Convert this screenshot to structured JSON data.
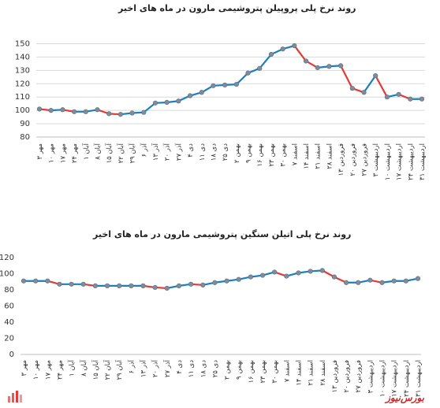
{
  "watermark": "بورس‌نیوز",
  "colors": {
    "line": "#1a7fc1",
    "down": "#e53935",
    "marker": "#7f8c9a",
    "grid": "#d9d9d9",
    "axis": "#bfbfbf"
  },
  "chart_data": [
    {
      "type": "line",
      "title": "روند نرخ پلی پروپیلن پتروشیمی مارون در ماه های اخیر",
      "ylim": [
        80,
        155
      ],
      "yticks": [
        80,
        90,
        100,
        110,
        120,
        130,
        140,
        150
      ],
      "grid": true,
      "categories": [
        "۳ مهر",
        "۱۰ مهر",
        "۱۷ مهر",
        "۲۴ مهر",
        "۱ آبان",
        "۸ آبان",
        "۱۵ آبان",
        "۲۲ آبان",
        "۲۹ آبان",
        "۶ آذر",
        "۱۳ آذر",
        "۲۰ آذر",
        "۲۷ آذر",
        "۴ دی",
        "۱۱ دی",
        "۱۸ دی",
        "۲۵ دی",
        "۲ بهمن",
        "۹ بهمن",
        "۱۶ بهمن",
        "۲۳ بهمن",
        "۳۰ بهمن",
        "۷ اسفند",
        "۱۴ اسفند",
        "۲۱ اسفند",
        "۲۸ اسفند",
        "۱۳ فروردین",
        "۲۰ فروردین",
        "۲۷ فروردین",
        "۳ اردیبهشت",
        "۱۰ اردیبهشت",
        "۱۷ اردیبهشت",
        "۲۴ اردیبهشت",
        "۳۱ اردیبهشت"
      ],
      "values": [
        101,
        100,
        100.5,
        99,
        99,
        100.5,
        97.5,
        97,
        98,
        98.5,
        105.5,
        106,
        107,
        111,
        113.5,
        118.5,
        119,
        119.5,
        128,
        131.5,
        142,
        146,
        148.5,
        137,
        132,
        133,
        133.5,
        116.5,
        113.5,
        126,
        110,
        112,
        108.5,
        108.5
      ]
    },
    {
      "type": "line",
      "title": "روند نرخ پلی اتیلن سنگین پتروشیمی مارون در ماه های اخیر",
      "ylim": [
        0,
        120
      ],
      "yticks": [
        0,
        20,
        40,
        60,
        80,
        100,
        120
      ],
      "grid": false,
      "categories": [
        "۳ مهر",
        "۱۰ مهر",
        "۱۷ مهر",
        "۲۴ مهر",
        "۱ آبان",
        "۸ آبان",
        "۱۵ آبان",
        "۲۲ آبان",
        "۲۹ آبان",
        "۶ آذر",
        "۱۳ آذر",
        "۲۰ آذر",
        "۲۷ آذر",
        "۴ دی",
        "۱۱ دی",
        "۱۸ دی",
        "۲۵ دی",
        "۲ بهمن",
        "۹ بهمن",
        "۱۶ بهمن",
        "۲۳ بهمن",
        "۳۰ بهمن",
        "۷ اسفند",
        "۱۴ اسفند",
        "۲۱ اسفند",
        "۲۸ اسفند",
        "۱۳ فروردین",
        "۲۰ فروردین",
        "۲۷ فروردین",
        "۳ اردیبهشت",
        "۱۰ اردیبهشت",
        "۱۷ اردیبهشت",
        "۲۴ اردیبهشت",
        "۳۱ اردیبهشت"
      ],
      "values": [
        91,
        91,
        91,
        87,
        87,
        87,
        85,
        85,
        85,
        85,
        85,
        83,
        82,
        85,
        87,
        86,
        89,
        91,
        93,
        96,
        98,
        102,
        97,
        101,
        103,
        104,
        96,
        89,
        89,
        92,
        89,
        91,
        91,
        94
      ]
    }
  ]
}
